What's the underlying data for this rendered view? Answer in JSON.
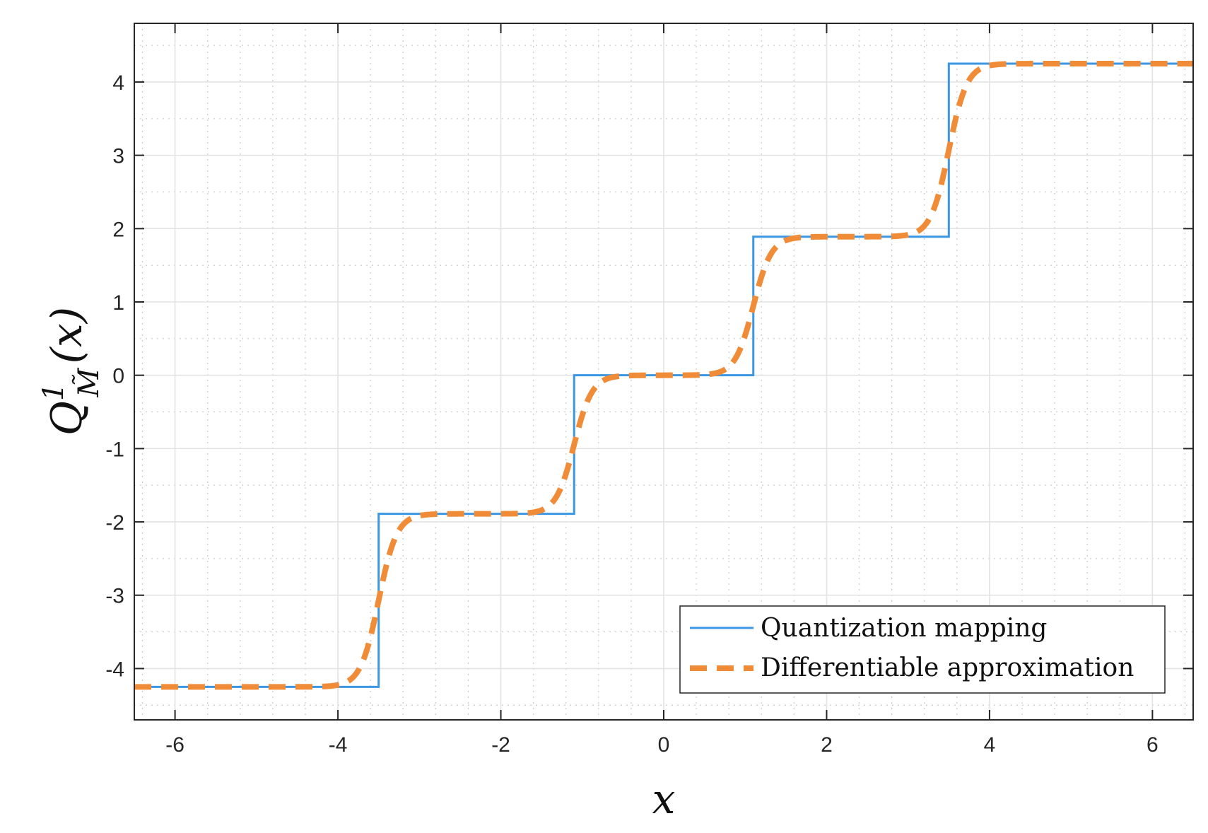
{
  "chart_data": {
    "type": "line",
    "title": "",
    "xlabel": "x",
    "ylabel": {
      "base": "Q",
      "superscript": "1",
      "subscript": "M̃",
      "argument": "(x)"
    },
    "xlim": [
      -6.5,
      6.5
    ],
    "ylim": [
      -4.7,
      4.8
    ],
    "xticks": [
      -6,
      -4,
      -2,
      0,
      2,
      4,
      6
    ],
    "xtick_labels": [
      "-6",
      "-4",
      "-2",
      "0",
      "2",
      "4",
      "6"
    ],
    "yticks": [
      -4,
      -3,
      -2,
      -1,
      0,
      1,
      2,
      3,
      4
    ],
    "ytick_labels": [
      "-4",
      "-3",
      "-2",
      "-1",
      "0",
      "1",
      "2",
      "3",
      "4"
    ],
    "grid": true,
    "minor_grid": true,
    "legend_position": "bottom-right",
    "series": [
      {
        "name": "Quantization mapping",
        "style": "solid",
        "color": "#3b96e4",
        "levels": [
          -4.25,
          -1.89,
          0,
          1.89,
          4.25
        ],
        "thresholds": [
          -3.5,
          -1.1,
          1.1,
          3.5
        ]
      },
      {
        "name": "Differentiable approximation",
        "style": "dashed",
        "color": "#f08c38",
        "levels": [
          -4.25,
          -1.89,
          0,
          1.89,
          4.25
        ],
        "thresholds": [
          -3.5,
          -1.1,
          1.1,
          3.5
        ],
        "sharpness": 9
      }
    ]
  }
}
